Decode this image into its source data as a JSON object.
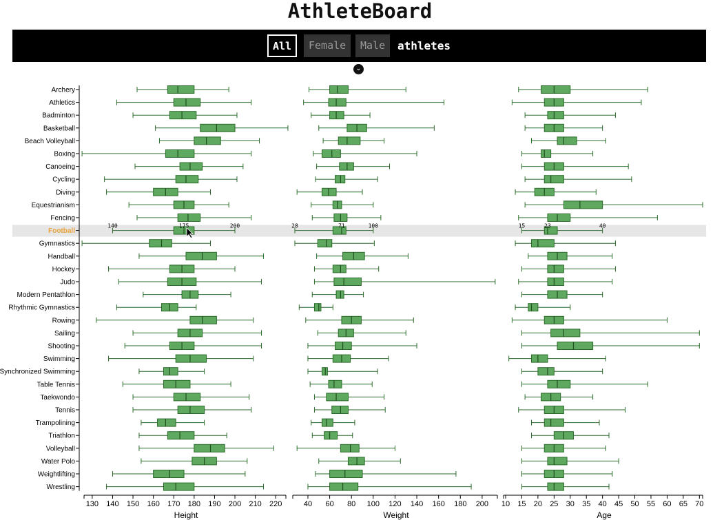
{
  "app": {
    "title": "AthleteBoard"
  },
  "filters": {
    "all": "All",
    "female": "Female",
    "male": "Male",
    "suffix": "athletes"
  },
  "colors": {
    "box": "#5fa85f",
    "stroke": "#2a6b2a",
    "highlight": "#e8a23c",
    "highlight_row": "#e6e6e6"
  },
  "icons": {
    "toggle": "chevron-down-circle-icon",
    "cursor": "mouse-pointer-icon"
  },
  "chart_data": {
    "type": "boxplot",
    "highlighted": "Football",
    "sports": [
      "Archery",
      "Athletics",
      "Badminton",
      "Basketball",
      "Beach Volleyball",
      "Boxing",
      "Canoeing",
      "Cycling",
      "Diving",
      "Equestrianism",
      "Fencing",
      "Football",
      "Gymnastics",
      "Handball",
      "Hockey",
      "Judo",
      "Modern Pentathlon",
      "Rhythmic Gymnastics",
      "Rowing",
      "Sailing",
      "Shooting",
      "Swimming",
      "Synchronized Swimming",
      "Table Tennis",
      "Taekwondo",
      "Tennis",
      "Trampolining",
      "Triathlon",
      "Volleyball",
      "Water Polo",
      "Weightlifting",
      "Wrestling"
    ],
    "panels": [
      {
        "name": "height",
        "xlabel": "Height",
        "xlim": [
          127,
          225
        ],
        "ticks": [
          130,
          140,
          150,
          160,
          170,
          180,
          190,
          200,
          210,
          220
        ],
        "stats": [
          [
            152,
            167,
            172,
            180,
            197
          ],
          [
            142,
            170,
            176,
            183,
            208
          ],
          [
            150,
            168,
            174,
            181,
            201
          ],
          [
            161,
            183,
            191,
            200,
            226
          ],
          [
            163,
            180,
            186,
            193,
            212
          ],
          [
            125,
            166,
            172,
            180,
            208
          ],
          [
            151,
            173,
            178,
            184,
            204
          ],
          [
            136,
            171,
            176,
            182,
            201
          ],
          [
            137,
            160,
            166,
            172,
            188
          ],
          [
            148,
            170,
            175,
            180,
            197
          ],
          [
            152,
            172,
            177,
            183,
            208
          ],
          [
            140,
            170,
            175,
            180,
            200
          ],
          [
            125,
            158,
            164,
            169,
            188
          ],
          [
            153,
            176,
            184,
            191,
            214
          ],
          [
            138,
            168,
            174,
            180,
            200
          ],
          [
            143,
            167,
            174,
            181,
            213
          ],
          [
            155,
            174,
            178,
            182,
            198
          ],
          [
            142,
            164,
            168,
            172,
            181
          ],
          [
            132,
            178,
            184,
            191,
            209
          ],
          [
            150,
            172,
            178,
            184,
            213
          ],
          [
            146,
            168,
            174,
            180,
            213
          ],
          [
            138,
            171,
            178,
            186,
            209
          ],
          [
            153,
            165,
            168,
            172,
            185
          ],
          [
            145,
            165,
            171,
            178,
            198
          ],
          [
            150,
            170,
            176,
            183,
            207
          ],
          [
            150,
            172,
            178,
            185,
            208
          ],
          [
            154,
            162,
            166,
            171,
            185
          ],
          [
            153,
            167,
            173,
            180,
            196
          ],
          [
            153,
            180,
            188,
            195,
            219
          ],
          [
            154,
            179,
            185,
            191,
            206
          ],
          [
            140,
            160,
            168,
            175,
            205
          ],
          [
            137,
            165,
            171,
            180,
            214
          ]
        ],
        "hover_ticks": [
          140,
          175,
          200
        ]
      },
      {
        "name": "weight",
        "xlabel": "Weight",
        "xlim": [
          28,
          214
        ],
        "ticks": [
          40,
          60,
          80,
          100,
          120,
          140,
          160,
          180,
          200
        ],
        "stats": [
          [
            41,
            60,
            67,
            77,
            130
          ],
          [
            36,
            59,
            66,
            75,
            165
          ],
          [
            43,
            60,
            66,
            73,
            97
          ],
          [
            50,
            76,
            85,
            94,
            156
          ],
          [
            54,
            68,
            76,
            88,
            110
          ],
          [
            45,
            53,
            62,
            70,
            140
          ],
          [
            48,
            69,
            76,
            82,
            115
          ],
          [
            47,
            65,
            70,
            74,
            104
          ],
          [
            30,
            53,
            59,
            66,
            90
          ],
          [
            43,
            63,
            67,
            71,
            100
          ],
          [
            44,
            64,
            70,
            76,
            107
          ],
          [
            28,
            63,
            71,
            75,
            100
          ],
          [
            28,
            49,
            57,
            62,
            101
          ],
          [
            48,
            72,
            82,
            92,
            132
          ],
          [
            46,
            63,
            70,
            75,
            105
          ],
          [
            46,
            64,
            73,
            89,
            212
          ],
          [
            44,
            66,
            70,
            73,
            91
          ],
          [
            32,
            46,
            50,
            52,
            63
          ],
          [
            38,
            71,
            80,
            89,
            137
          ],
          [
            49,
            68,
            75,
            82,
            130
          ],
          [
            40,
            65,
            72,
            80,
            140
          ],
          [
            40,
            63,
            71,
            79,
            114
          ],
          [
            40,
            53,
            56,
            58,
            104
          ],
          [
            42,
            59,
            64,
            71,
            99
          ],
          [
            46,
            57,
            66,
            77,
            110
          ],
          [
            46,
            62,
            70,
            77,
            111
          ],
          [
            43,
            53,
            57,
            63,
            83
          ],
          [
            44,
            55,
            60,
            67,
            81
          ],
          [
            30,
            70,
            79,
            87,
            120
          ],
          [
            50,
            77,
            85,
            92,
            125
          ],
          [
            47,
            60,
            74,
            90,
            176
          ],
          [
            40,
            60,
            72,
            86,
            190
          ]
        ],
        "hover_ticks": [
          28,
          71,
          100
        ]
      },
      {
        "name": "age",
        "xlabel": "Age",
        "xlim": [
          10,
          71
        ],
        "ticks": [
          10,
          15,
          20,
          25,
          30,
          35,
          40,
          45,
          50,
          55,
          60,
          65,
          70
        ],
        "stats": [
          [
            14,
            21,
            25,
            30,
            54
          ],
          [
            12,
            22,
            25,
            28,
            52
          ],
          [
            16,
            23,
            25,
            28,
            44
          ],
          [
            16,
            22,
            25,
            28,
            40
          ],
          [
            18,
            26,
            28,
            32,
            41
          ],
          [
            15,
            21,
            22,
            24,
            37
          ],
          [
            15,
            22,
            25,
            28,
            48
          ],
          [
            16,
            22,
            24,
            28,
            49
          ],
          [
            13,
            19,
            22,
            25,
            38
          ],
          [
            16,
            28,
            33,
            40,
            71
          ],
          [
            14,
            23,
            26,
            30,
            57
          ],
          [
            15,
            22,
            23,
            26,
            40
          ],
          [
            13,
            18,
            20,
            25,
            44
          ],
          [
            17,
            23,
            26,
            29,
            43
          ],
          [
            15,
            23,
            25,
            28,
            44
          ],
          [
            14,
            23,
            25,
            28,
            43
          ],
          [
            15,
            23,
            26,
            29,
            40
          ],
          [
            13,
            17,
            18,
            20,
            30
          ],
          [
            12,
            22,
            25,
            28,
            60
          ],
          [
            15,
            24,
            28,
            33,
            70
          ],
          [
            15,
            26,
            31,
            37,
            70
          ],
          [
            11,
            18,
            20,
            23,
            41
          ],
          [
            15,
            20,
            23,
            25,
            40
          ],
          [
            15,
            23,
            26,
            30,
            54
          ],
          [
            16,
            21,
            24,
            27,
            37
          ],
          [
            14,
            22,
            25,
            28,
            47
          ],
          [
            18,
            22,
            24,
            28,
            39
          ],
          [
            18,
            25,
            28,
            31,
            42
          ],
          [
            15,
            22,
            25,
            28,
            41
          ],
          [
            15,
            23,
            25,
            29,
            45
          ],
          [
            15,
            22,
            25,
            28,
            43
          ],
          [
            15,
            23,
            25,
            28,
            42
          ]
        ],
        "hover_ticks": [
          15,
          23,
          40
        ]
      }
    ]
  }
}
